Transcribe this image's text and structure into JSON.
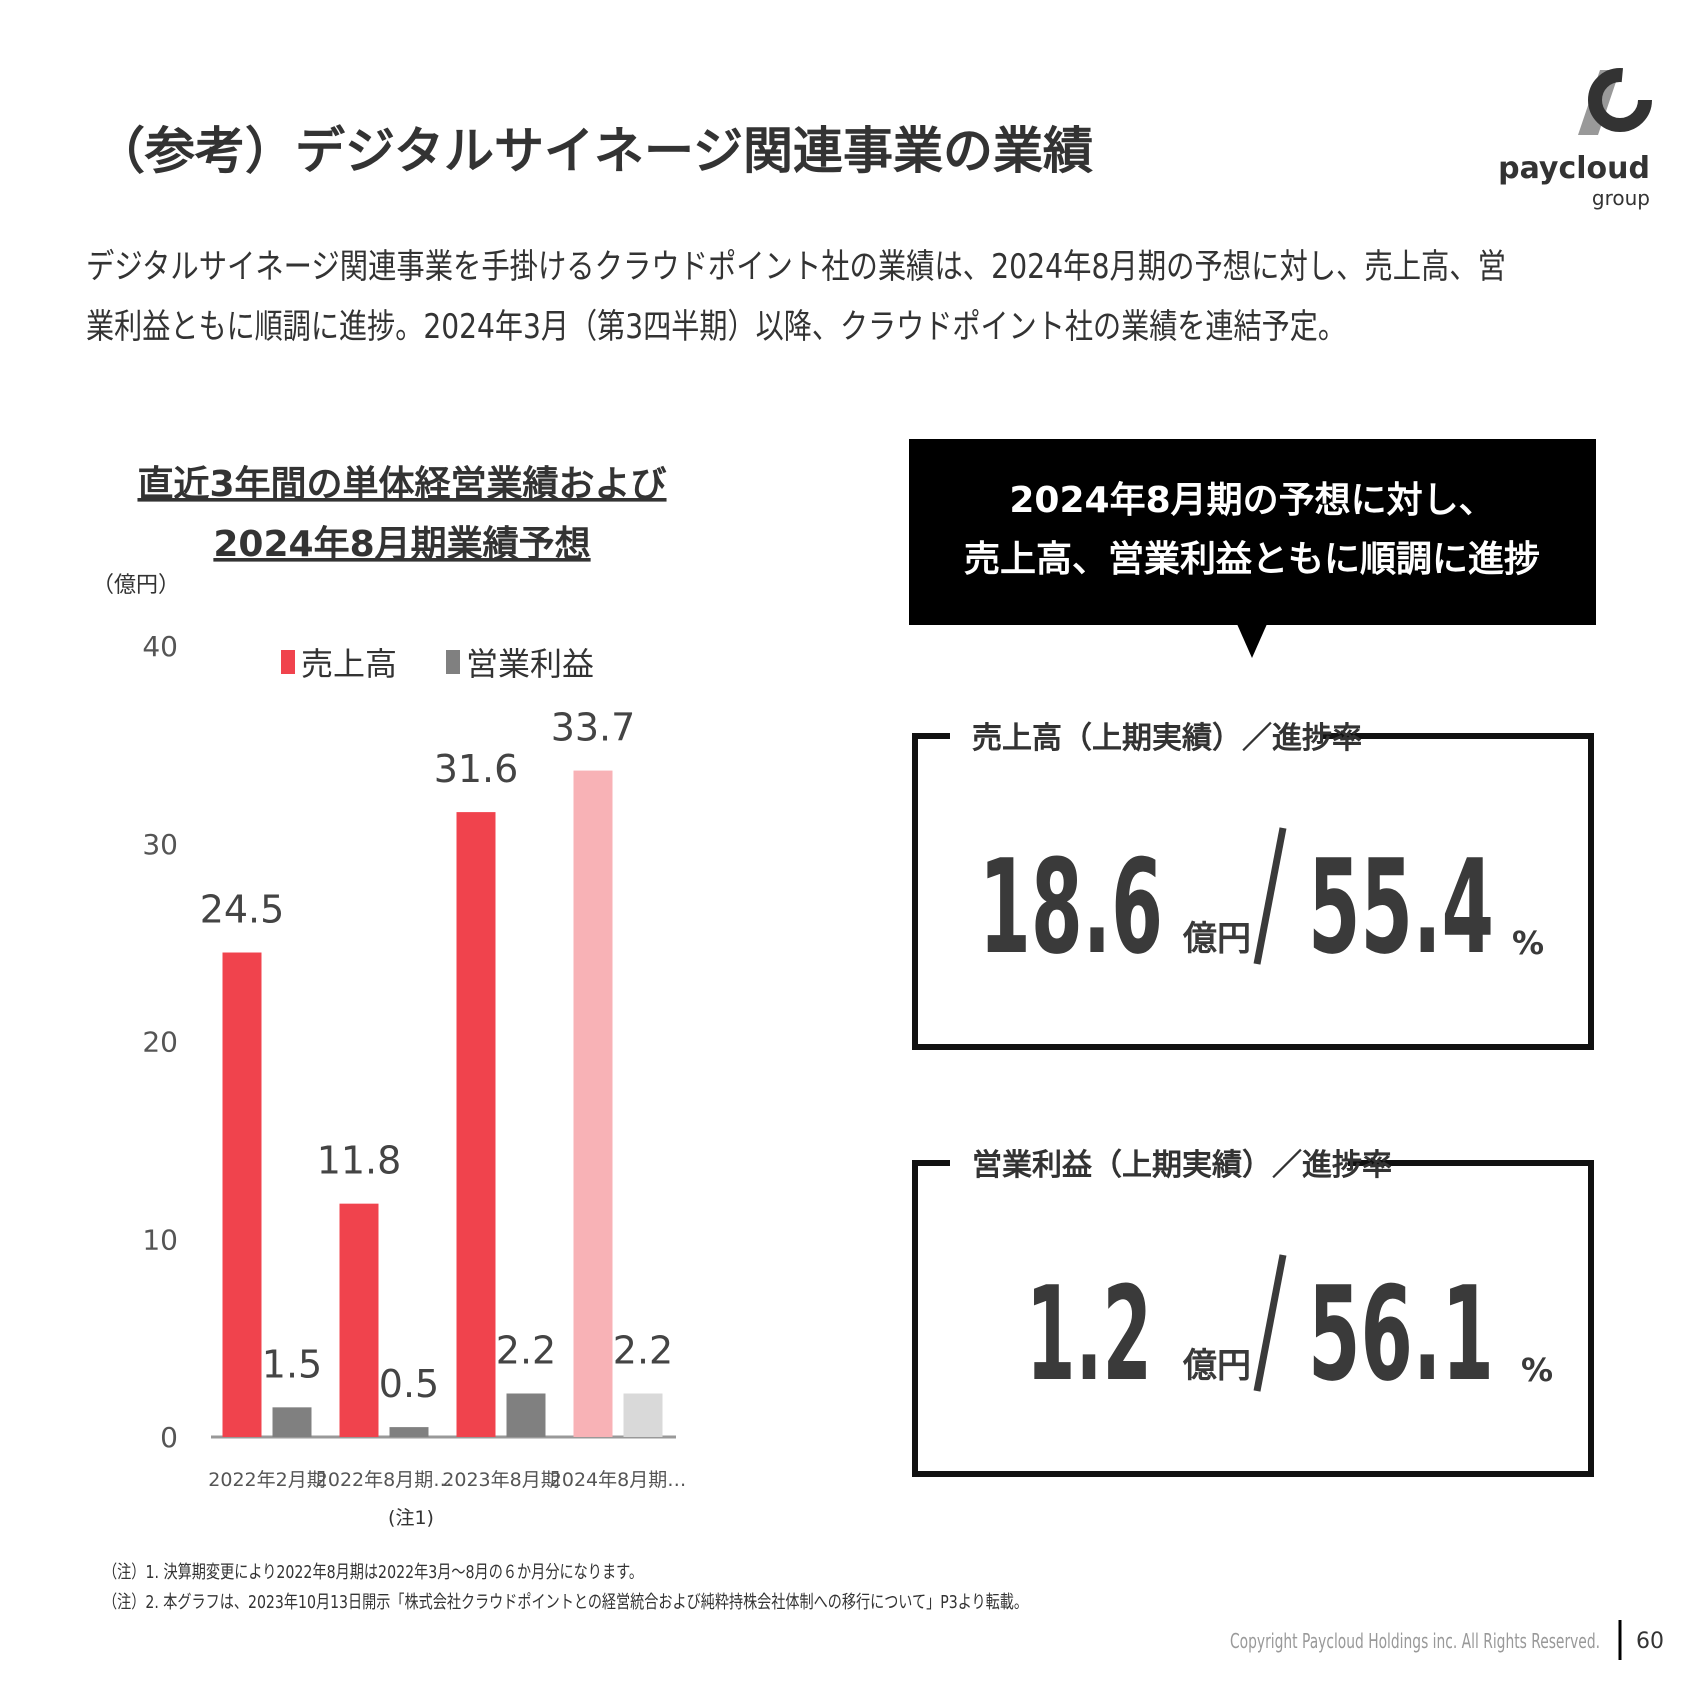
{
  "header": {
    "title": "（参考）デジタルサイネージ関連事業の業績",
    "body": [
      "デジタルサイネージ関連事業を手掛けるクラウドポイント社の業績は、2024年8月期の予想に対し、売上高、営",
      "業利益ともに順調に進捗。2024年3月（第3四半期）以降、クラウドポイント社の業績を連結予定。"
    ]
  },
  "logo": {
    "name": "paycloud",
    "sub": "group"
  },
  "chart_data": {
    "type": "bar",
    "title": [
      "直近3年間の単体経営業績および",
      "2024年8月期業績予想"
    ],
    "y_label": "（億円）",
    "categories": [
      "2022年2月期",
      "2022年8月期…",
      "2023年8月期",
      "2024年8月期…"
    ],
    "annotation": "(注1)",
    "series": [
      {
        "name": "売上高",
        "color": "#f0434d",
        "colors": [
          "#f0434d",
          "#f0434d",
          "#f0434d",
          "#f8b2b6"
        ],
        "values": [
          24.5,
          11.8,
          31.6,
          33.7
        ]
      },
      {
        "name": "営業利益",
        "color": "#808080",
        "colors": [
          "#808080",
          "#808080",
          "#808080",
          "#d9d9d9"
        ],
        "values": [
          1.5,
          0.5,
          2.2,
          2.2
        ]
      }
    ],
    "ylim": [
      0,
      40
    ],
    "yticks": [
      0,
      10,
      20,
      30,
      40
    ],
    "grid": false
  },
  "callout": [
    "2024年8月期の予想に対し、",
    "売上高、営業利益ともに順調に進捗"
  ],
  "boxes": [
    {
      "heading": "売上高（上期実績）／進捗率",
      "value": 18.6,
      "unit": "億円",
      "rate": 55.4,
      "rate_unit": "%"
    },
    {
      "heading": "営業利益（上期実績）／進捗率",
      "value": 1.2,
      "unit": "億円",
      "rate": 56.1,
      "rate_unit": "%"
    }
  ],
  "notes": [
    "（注）1. 決算期変更により2022年8月期は2022年3月～8月の６か月分になります。",
    "（注）2. 本グラフは、2023年10月13日開示「株式会社クラウドポイントとの経営統合および純粋持株会社体制への移行について」P3より転載。"
  ],
  "footer": {
    "copyright": "Copyright Paycloud Holdings inc. All Rights Reserved.",
    "page": 60
  }
}
